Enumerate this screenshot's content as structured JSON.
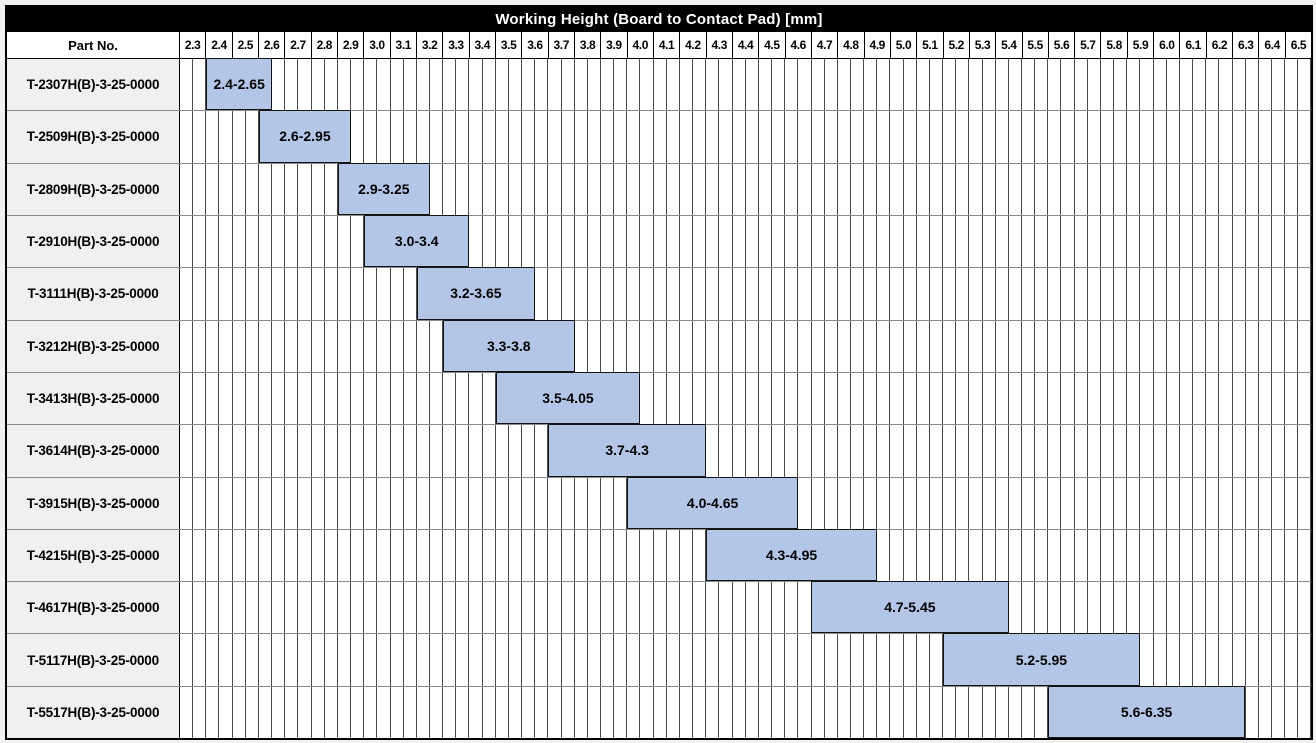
{
  "title": "Working Height (Board to Contact Pad) [mm]",
  "part_no_header": "Part No.",
  "colors": {
    "title_bg": "#000000",
    "title_text": "#ffffff",
    "bar_fill": "#b4c6e7",
    "bar_border": "#141414",
    "part_cell_bg": "#f0f0f0",
    "minor_gridline": "#4a4a4a",
    "row_separator": "#8a8a8a",
    "outer_border": "#000000"
  },
  "chart_data": {
    "type": "bar",
    "subtype": "horizontal-range-gantt",
    "title": "Working Height (Board to Contact Pad) [mm]",
    "xlabel": "Working Height (Board to Contact Pad) [mm]",
    "ylabel": "Part No.",
    "axis_min": 2.3,
    "axis_max": 6.6,
    "tick_step": 0.1,
    "minor_step": 0.05,
    "grid": true,
    "legend": false,
    "ticks": [
      "2.3",
      "2.4",
      "2.5",
      "2.6",
      "2.7",
      "2.8",
      "2.9",
      "3.0",
      "3.1",
      "3.2",
      "3.3",
      "3.4",
      "3.5",
      "3.6",
      "3.7",
      "3.8",
      "3.9",
      "4.0",
      "4.1",
      "4.2",
      "4.3",
      "4.4",
      "4.5",
      "4.6",
      "4.7",
      "4.8",
      "4.9",
      "5.0",
      "5.1",
      "5.2",
      "5.3",
      "5.4",
      "5.5",
      "5.6",
      "5.7",
      "5.8",
      "5.9",
      "6.0",
      "6.1",
      "6.2",
      "6.3",
      "6.4",
      "6.5"
    ],
    "rows": [
      {
        "part": "T-2307H(B)-3-25-0000",
        "start": 2.4,
        "end": 2.65,
        "label": "2.4-2.65"
      },
      {
        "part": "T-2509H(B)-3-25-0000",
        "start": 2.6,
        "end": 2.95,
        "label": "2.6-2.95"
      },
      {
        "part": "T-2809H(B)-3-25-0000",
        "start": 2.9,
        "end": 3.25,
        "label": "2.9-3.25"
      },
      {
        "part": "T-2910H(B)-3-25-0000",
        "start": 3.0,
        "end": 3.4,
        "label": "3.0-3.4"
      },
      {
        "part": "T-3111H(B)-3-25-0000",
        "start": 3.2,
        "end": 3.65,
        "label": "3.2-3.65"
      },
      {
        "part": "T-3212H(B)-3-25-0000",
        "start": 3.3,
        "end": 3.8,
        "label": "3.3-3.8"
      },
      {
        "part": "T-3413H(B)-3-25-0000",
        "start": 3.5,
        "end": 4.05,
        "label": "3.5-4.05"
      },
      {
        "part": "T-3614H(B)-3-25-0000",
        "start": 3.7,
        "end": 4.3,
        "label": "3.7-4.3"
      },
      {
        "part": "T-3915H(B)-3-25-0000",
        "start": 4.0,
        "end": 4.65,
        "label": "4.0-4.65"
      },
      {
        "part": "T-4215H(B)-3-25-0000",
        "start": 4.3,
        "end": 4.95,
        "label": "4.3-4.95"
      },
      {
        "part": "T-4617H(B)-3-25-0000",
        "start": 4.7,
        "end": 5.45,
        "label": "4.7-5.45"
      },
      {
        "part": "T-5117H(B)-3-25-0000",
        "start": 5.2,
        "end": 5.95,
        "label": "5.2-5.95"
      },
      {
        "part": "T-5517H(B)-3-25-0000",
        "start": 5.6,
        "end": 6.35,
        "label": "5.6-6.35"
      }
    ]
  }
}
